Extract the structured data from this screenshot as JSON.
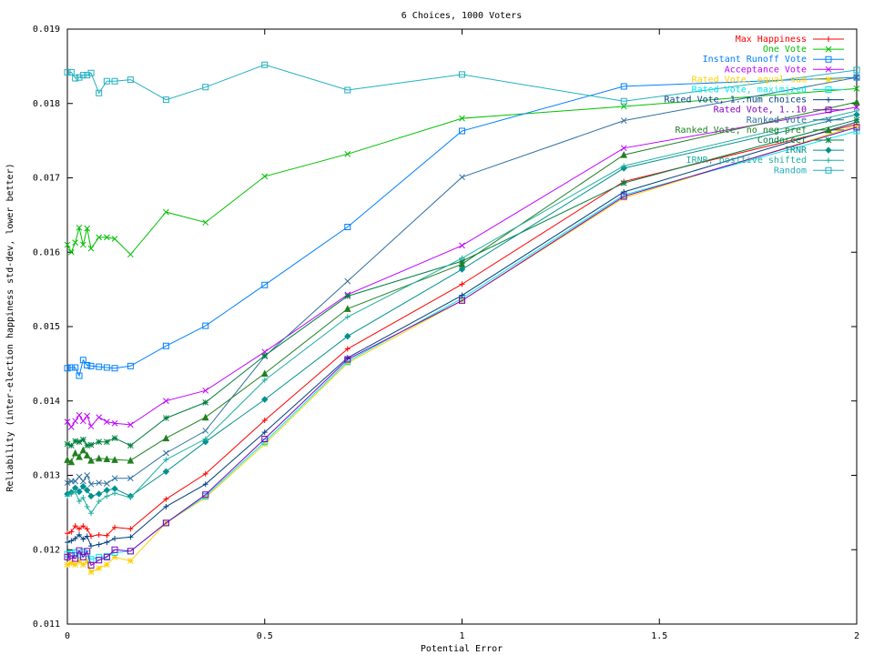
{
  "chart_data": {
    "type": "line",
    "title": "6 Choices, 1000 Voters",
    "xlabel": "Potential Error",
    "ylabel": "Reliability (inter-election happiness std-dev, lower better)",
    "xlim": [
      0,
      2
    ],
    "ylim": [
      0.011,
      0.019
    ],
    "xticks": [
      "0",
      "0.5",
      "1",
      "1.5",
      "2"
    ],
    "yticks": [
      "0.011",
      "0.012",
      "0.013",
      "0.014",
      "0.015",
      "0.016",
      "0.017",
      "0.018",
      "0.019"
    ],
    "legend_position": "top-right",
    "grid": false,
    "x": [
      0,
      0.01,
      0.02,
      0.03,
      0.04,
      0.05,
      0.06,
      0.08,
      0.1,
      0.12,
      0.16,
      0.25,
      0.35,
      0.5,
      0.71,
      1.0,
      1.41,
      2.0
    ],
    "series": [
      {
        "name": "Max Happiness",
        "color": "#ff0000",
        "marker": "plus",
        "values": [
          0.01222,
          0.01224,
          0.01232,
          0.01228,
          0.01232,
          0.01228,
          0.01218,
          0.0122,
          0.01219,
          0.0123,
          0.01228,
          0.01268,
          0.01302,
          0.01374,
          0.0147,
          0.01557,
          0.01695,
          0.01772
        ]
      },
      {
        "name": "One Vote",
        "color": "#00c000",
        "marker": "x",
        "values": [
          0.0161,
          0.016,
          0.01613,
          0.01633,
          0.0161,
          0.01632,
          0.01605,
          0.0162,
          0.0162,
          0.01618,
          0.01597,
          0.01654,
          0.0164,
          0.01702,
          0.01732,
          0.0178,
          0.01796,
          0.0182
        ]
      },
      {
        "name": "Instant Runoff Vote",
        "color": "#0080ff",
        "marker": "square",
        "values": [
          0.01444,
          0.01445,
          0.01445,
          0.01434,
          0.01455,
          0.01448,
          0.01447,
          0.01446,
          0.01445,
          0.01444,
          0.01447,
          0.01474,
          0.01501,
          0.01556,
          0.01634,
          0.01763,
          0.01823,
          0.01835
        ]
      },
      {
        "name": "Acceptance Vote",
        "color": "#c000ff",
        "marker": "x",
        "values": [
          0.01372,
          0.01365,
          0.01373,
          0.01381,
          0.01373,
          0.0138,
          0.01366,
          0.01378,
          0.01372,
          0.0137,
          0.01368,
          0.014,
          0.01414,
          0.01466,
          0.01543,
          0.01609,
          0.0174,
          0.01795
        ]
      },
      {
        "name": "Rated Vote, equal sum",
        "color": "#ffd000",
        "marker": "star",
        "values": [
          0.0118,
          0.01182,
          0.0118,
          0.01184,
          0.0118,
          0.01184,
          0.0117,
          0.01175,
          0.0118,
          0.0119,
          0.01185,
          0.01236,
          0.0127,
          0.01342,
          0.01451,
          0.01535,
          0.01673,
          0.0177
        ]
      },
      {
        "name": "Rated Vote, maximized",
        "color": "#00e8e8",
        "marker": "square",
        "values": [
          0.01194,
          0.01195,
          0.01196,
          0.01193,
          0.01197,
          0.01195,
          0.01187,
          0.0119,
          0.01191,
          0.01196,
          0.01198,
          0.01236,
          0.01272,
          0.01345,
          0.01453,
          0.01538,
          0.01677,
          0.01763
        ]
      },
      {
        "name": "Rated Vote, 1..num choices",
        "color": "#004080",
        "marker": "plus",
        "values": [
          0.0121,
          0.01212,
          0.01215,
          0.0122,
          0.01214,
          0.01218,
          0.01205,
          0.01207,
          0.0121,
          0.01215,
          0.01217,
          0.01258,
          0.01288,
          0.01358,
          0.01458,
          0.01542,
          0.01681,
          0.01775
        ]
      },
      {
        "name": "Rated Vote, 1..10",
        "color": "#8000c0",
        "marker": "square",
        "values": [
          0.0119,
          0.01192,
          0.01188,
          0.01199,
          0.0119,
          0.01198,
          0.01179,
          0.01186,
          0.0119,
          0.012,
          0.01198,
          0.01236,
          0.01274,
          0.01349,
          0.01456,
          0.01535,
          0.01675,
          0.01768
        ]
      },
      {
        "name": "Ranked Vote",
        "color": "#2f6fa0",
        "marker": "x",
        "values": [
          0.0129,
          0.01292,
          0.01292,
          0.01298,
          0.01292,
          0.013,
          0.01288,
          0.0129,
          0.01289,
          0.01296,
          0.01296,
          0.0133,
          0.0136,
          0.0146,
          0.01561,
          0.01701,
          0.01777,
          0.01835
        ]
      },
      {
        "name": "Ranked Vote, no neg pref",
        "color": "#208020",
        "marker": "triangle",
        "values": [
          0.01321,
          0.01318,
          0.0133,
          0.01325,
          0.01334,
          0.01327,
          0.0132,
          0.01323,
          0.01322,
          0.01321,
          0.0132,
          0.0135,
          0.01378,
          0.01437,
          0.01524,
          0.01584,
          0.01731,
          0.01802
        ]
      },
      {
        "name": "Condorcet",
        "color": "#008040",
        "marker": "star",
        "values": [
          0.01342,
          0.0134,
          0.01346,
          0.01345,
          0.01348,
          0.0134,
          0.01341,
          0.01345,
          0.01345,
          0.0135,
          0.0134,
          0.01377,
          0.01398,
          0.01461,
          0.01541,
          0.01588,
          0.01693,
          0.01778
        ]
      },
      {
        "name": "IRNR",
        "color": "#009090",
        "marker": "diamond",
        "values": [
          0.01275,
          0.01277,
          0.01283,
          0.01278,
          0.01285,
          0.0128,
          0.01272,
          0.01275,
          0.0128,
          0.01282,
          0.01272,
          0.01305,
          0.01345,
          0.01402,
          0.01487,
          0.01577,
          0.01713,
          0.01785
        ]
      },
      {
        "name": "IRNR, positive shifted",
        "color": "#20b0a0",
        "marker": "plus",
        "values": [
          0.01272,
          0.01275,
          0.01278,
          0.01265,
          0.0127,
          0.01258,
          0.01249,
          0.01265,
          0.01272,
          0.01276,
          0.0127,
          0.01321,
          0.01349,
          0.01428,
          0.01513,
          0.01592,
          0.01716,
          0.0179
        ]
      },
      {
        "name": "Random",
        "color": "#20b0c0",
        "marker": "square",
        "values": [
          0.01842,
          0.01842,
          0.01834,
          0.01835,
          0.01838,
          0.01838,
          0.01841,
          0.01814,
          0.0183,
          0.0183,
          0.01832,
          0.01805,
          0.01822,
          0.01852,
          0.01818,
          0.01839,
          0.01803,
          0.01845
        ]
      }
    ]
  }
}
